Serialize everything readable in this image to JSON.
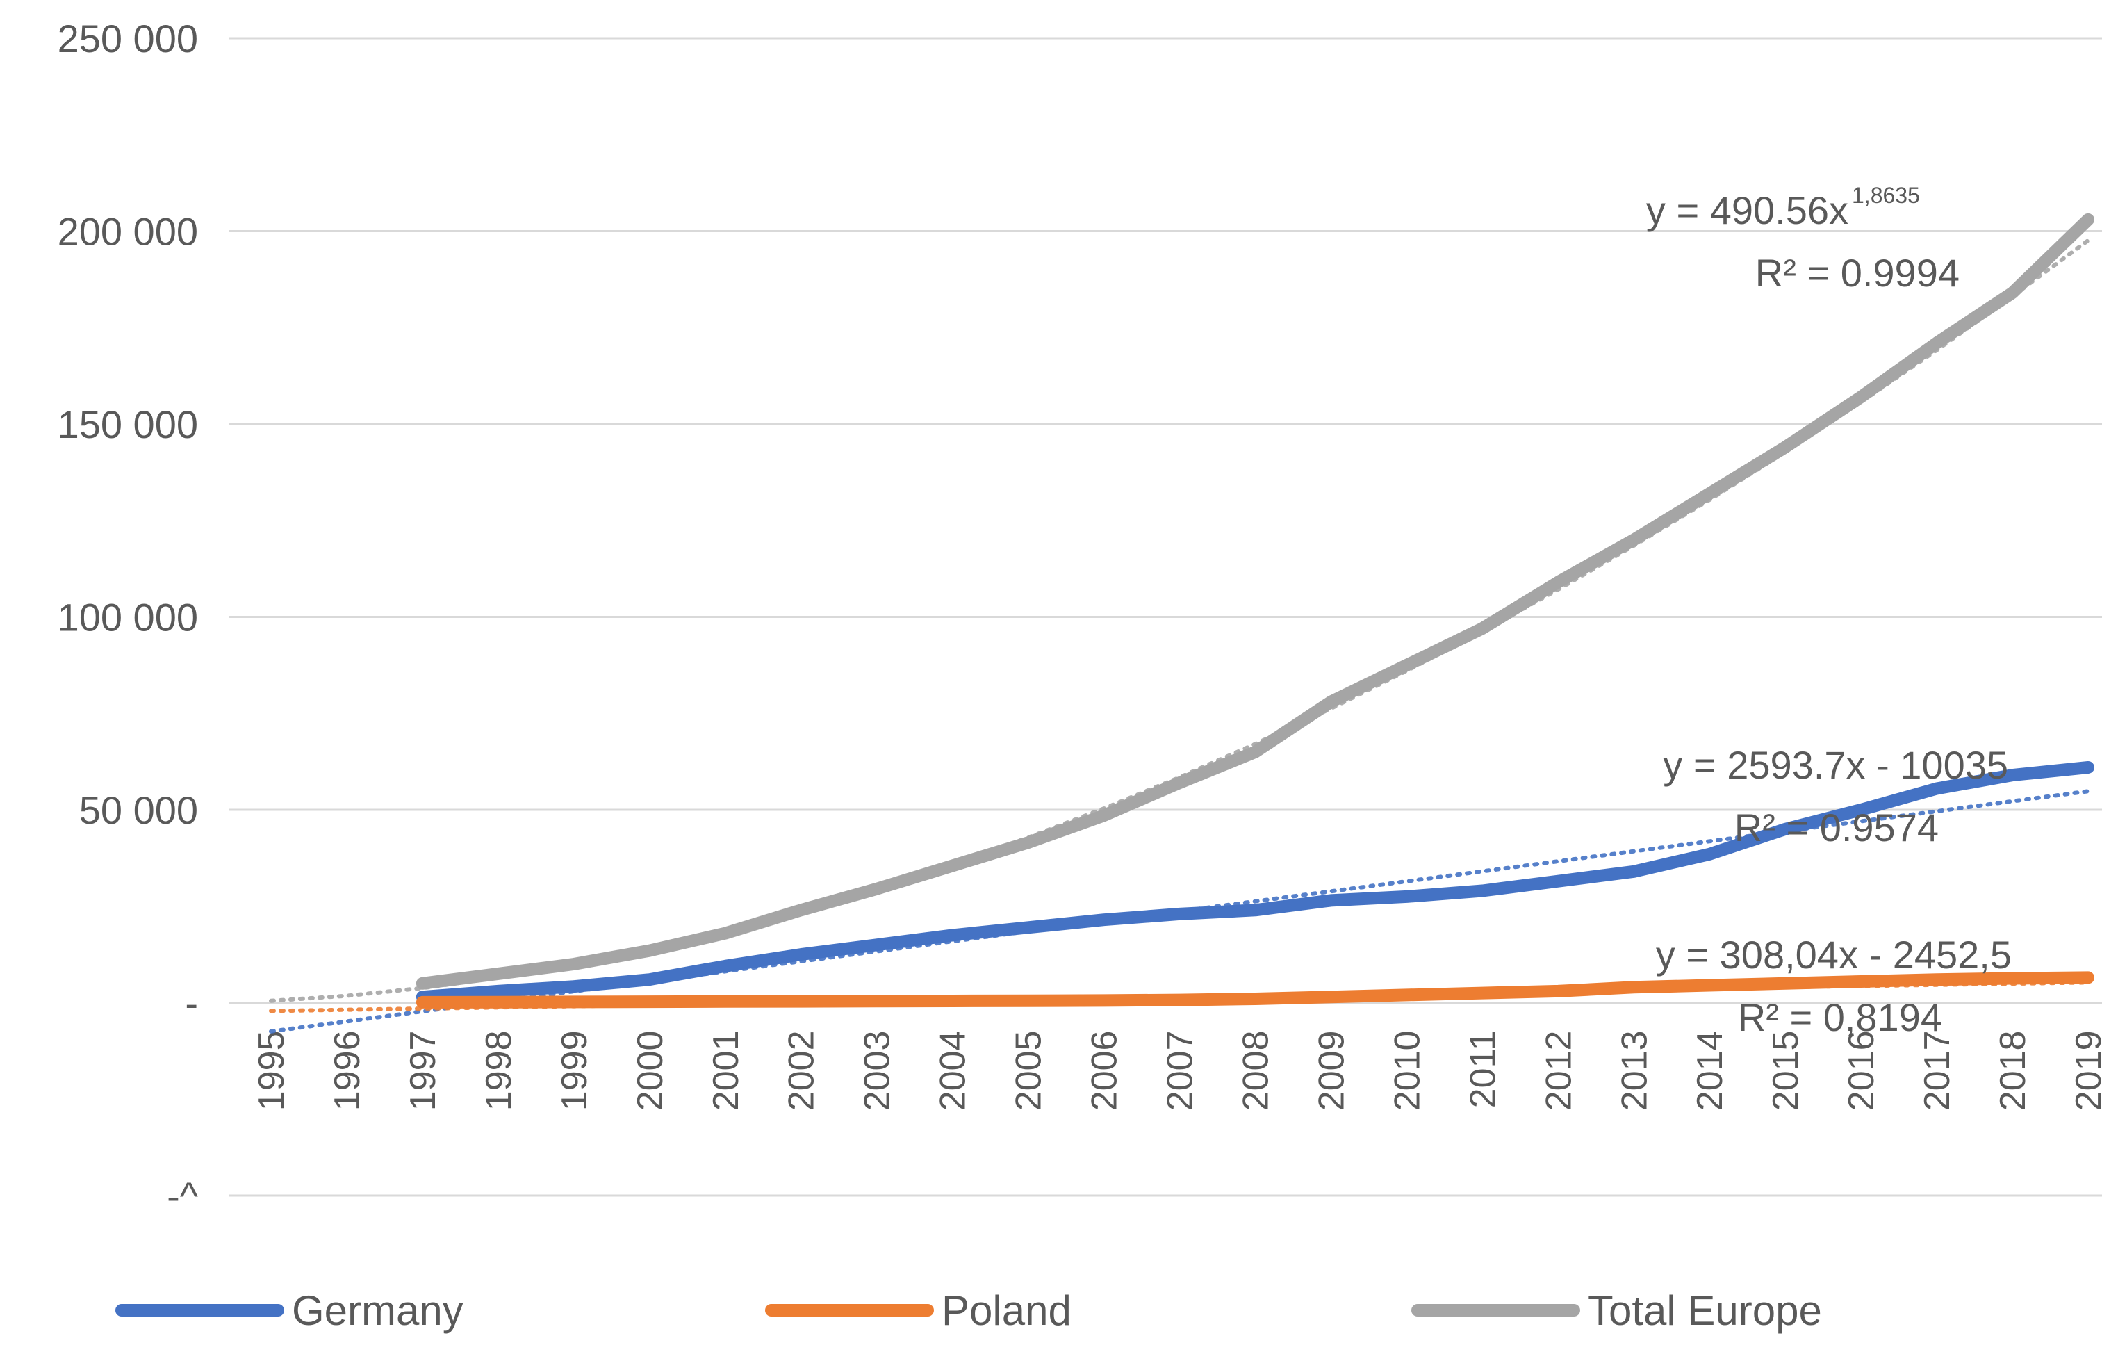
{
  "chart_data": {
    "type": "line",
    "title": "",
    "xlabel": "",
    "ylabel": "",
    "ylim": [
      -50000,
      250000
    ],
    "y_ticks": [
      {
        "value": 250000,
        "label": "250 000"
      },
      {
        "value": 200000,
        "label": "200 000"
      },
      {
        "value": 150000,
        "label": "150 000"
      },
      {
        "value": 100000,
        "label": "100 000"
      },
      {
        "value": 50000,
        "label": "50 000"
      },
      {
        "value": 0,
        "label": "-"
      },
      {
        "value": -50000,
        "label": "-^"
      }
    ],
    "categories": [
      "1995",
      "1996",
      "1997",
      "1998",
      "1999",
      "2000",
      "2001",
      "2002",
      "2003",
      "2004",
      "2005",
      "2006",
      "2007",
      "2008",
      "2009",
      "2010",
      "2011",
      "2012",
      "2013",
      "2014",
      "2015",
      "2016",
      "2017",
      "2018",
      "2019"
    ],
    "series": [
      {
        "name": "Germany",
        "color": "#4472C4",
        "values": [
          null,
          null,
          1500,
          3000,
          4200,
          6000,
          9500,
          12500,
          15000,
          17500,
          19500,
          21500,
          23000,
          24000,
          26500,
          27500,
          29000,
          31500,
          34000,
          38500,
          45000,
          50000,
          55500,
          59000,
          61000
        ],
        "trend": {
          "type": "linear",
          "a": 2593.7,
          "b": -10035,
          "label_eq": "y = 2593.7x - 10035",
          "label_r2": "R² = 0.9574"
        }
      },
      {
        "name": "Poland",
        "color": "#ED7D31",
        "values": [
          null,
          null,
          100,
          150,
          200,
          250,
          300,
          350,
          400,
          450,
          500,
          550,
          700,
          1000,
          1500,
          2000,
          2500,
          3000,
          4000,
          4500,
          5000,
          5500,
          6000,
          6300,
          6500
        ],
        "trend": {
          "type": "linear",
          "a": 308.04,
          "b": -2452.5,
          "label_eq": "y = 308,04x - 2452,5",
          "label_r2": "R² = 0,8194"
        }
      },
      {
        "name": "Total Europe",
        "color": "#A5A5A5",
        "values": [
          null,
          null,
          5000,
          7500,
          10000,
          13500,
          18000,
          24000,
          29500,
          35500,
          41500,
          48500,
          57000,
          65000,
          78000,
          87500,
          97000,
          109000,
          120000,
          132000,
          144000,
          157000,
          171000,
          184000,
          203000
        ],
        "trend": {
          "type": "power",
          "a": 490.56,
          "b": 1.8635,
          "label_eq": "y = 490.56x",
          "label_exp": "1,8635",
          "label_r2": "R² = 0.9994"
        }
      }
    ],
    "legend": {
      "position": "bottom"
    },
    "grid": true
  }
}
